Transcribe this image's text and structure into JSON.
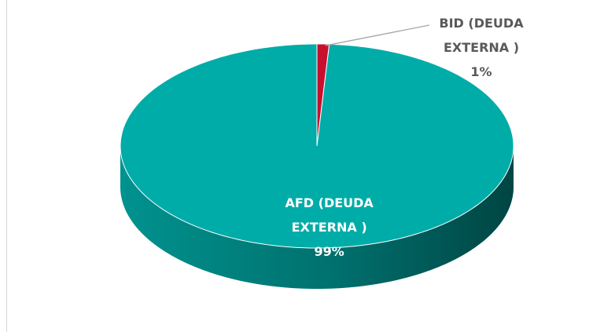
{
  "chart_data": {
    "type": "pie",
    "categories": [
      "BID (DEUDA EXTERNA )",
      "AFD (DEUDA EXTERNA )"
    ],
    "values": [
      1,
      99
    ],
    "value_labels": [
      "1%",
      "99%"
    ],
    "colors": [
      "#c8102e",
      "#00aca8"
    ]
  }
}
